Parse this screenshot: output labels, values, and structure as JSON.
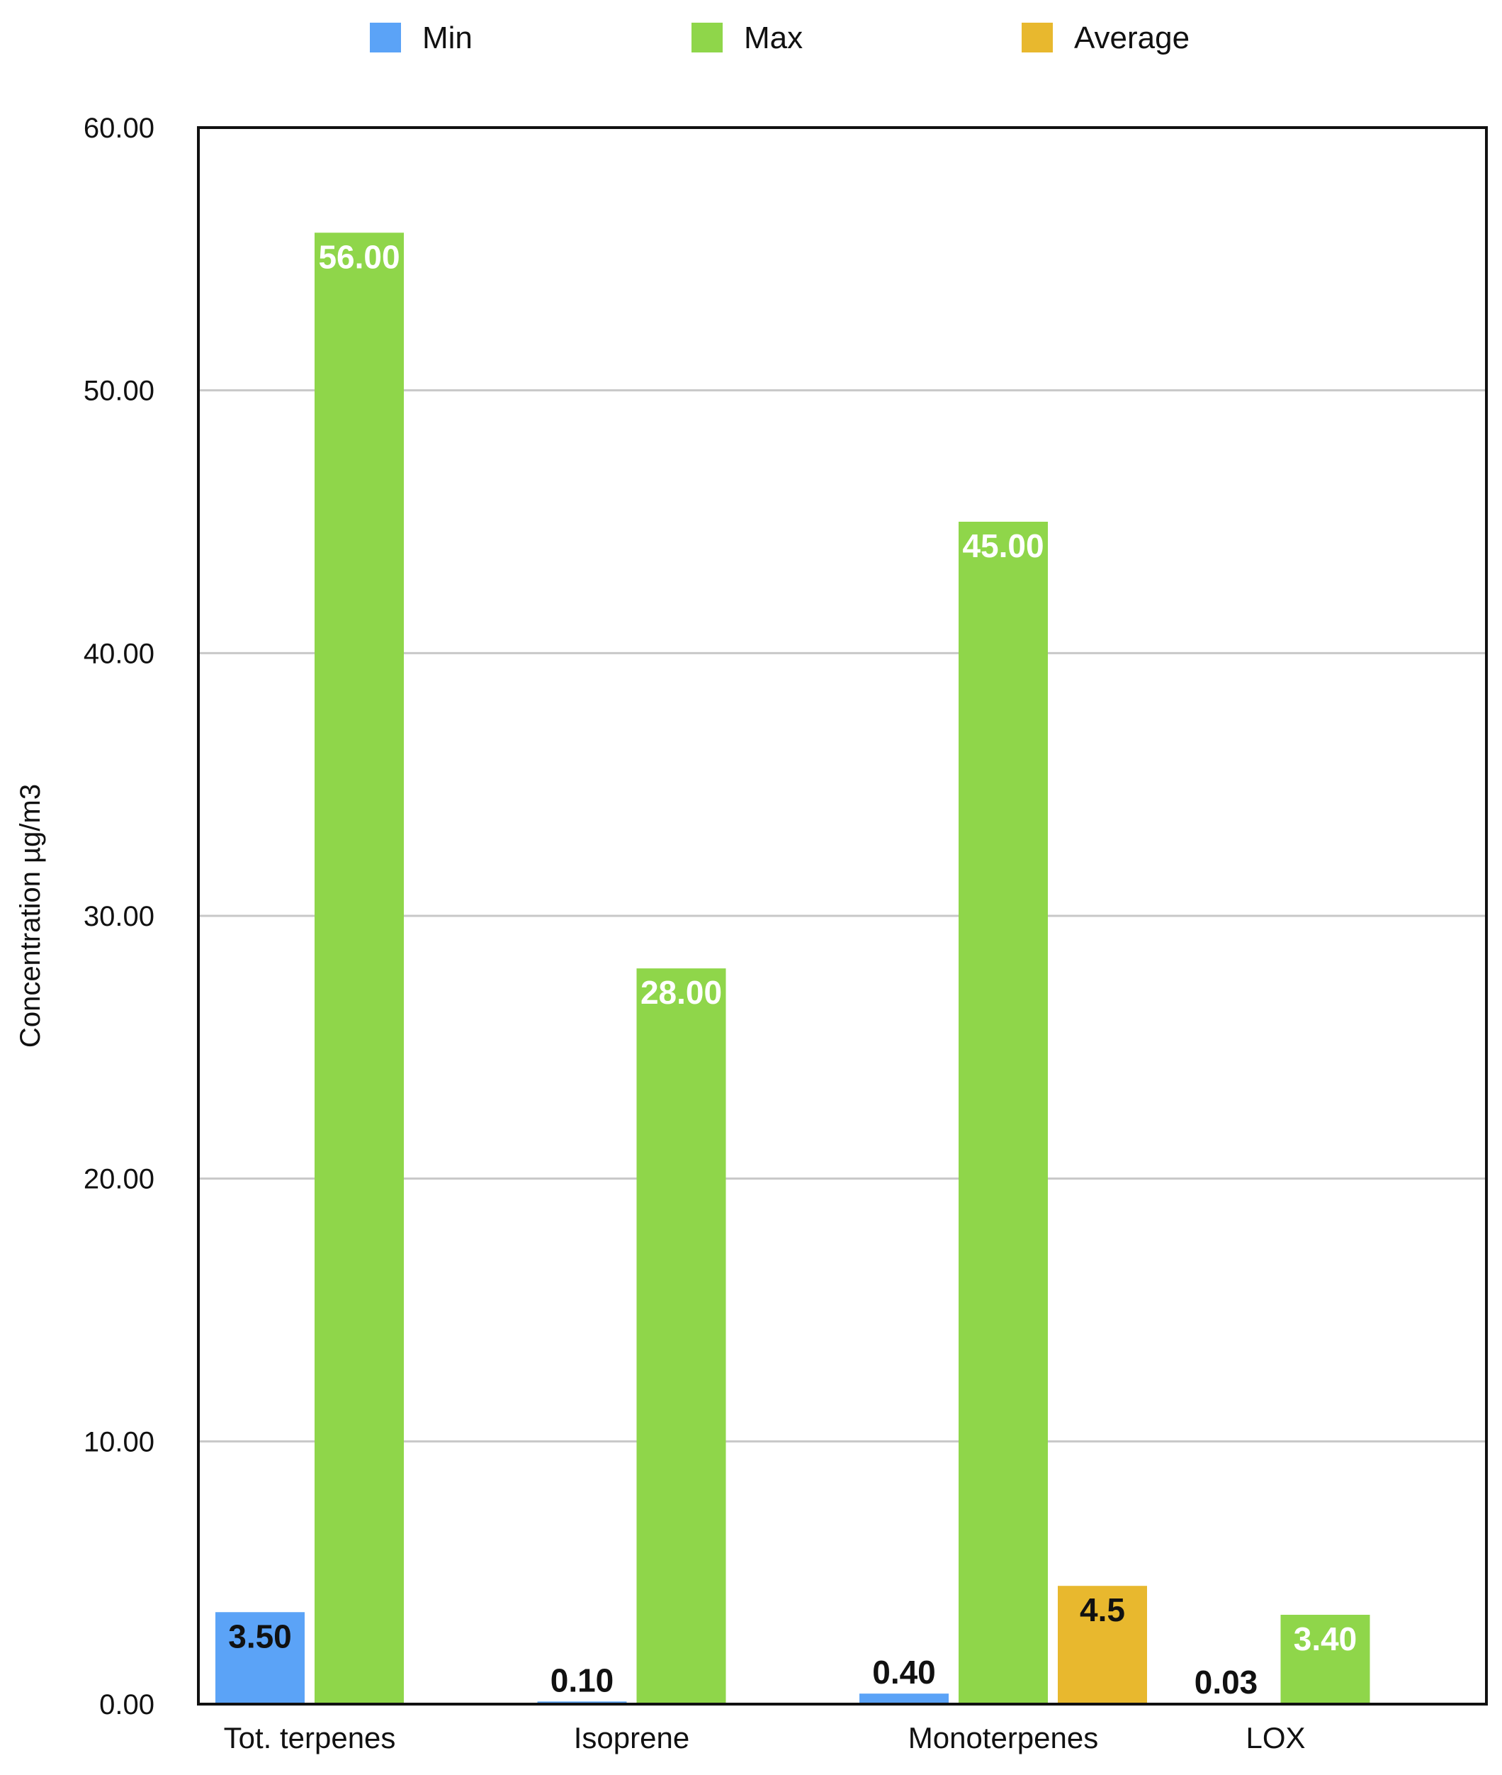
{
  "chart_data": {
    "type": "bar",
    "title": "",
    "xlabel": "",
    "ylabel": "Concentration µg/m3",
    "ylim": [
      0,
      60
    ],
    "yticks": [
      "0.00",
      "10.00",
      "20.00",
      "30.00",
      "40.00",
      "50.00",
      "60.00"
    ],
    "ytick_values": [
      0,
      10,
      20,
      30,
      40,
      50,
      60
    ],
    "grid": true,
    "legend_position": "top",
    "categories": [
      "Tot. terpenes",
      "Isoprene",
      "Monoterpenes",
      "LOX"
    ],
    "series": [
      {
        "name": "Min",
        "color": "#5BA3F7",
        "values": [
          3.5,
          0.1,
          0.4,
          0.03
        ],
        "labels": [
          "3.50",
          "0.10",
          "0.40",
          "0.03"
        ],
        "label_color": "#111111"
      },
      {
        "name": "Max",
        "color": "#8FD64A",
        "values": [
          56,
          28,
          45,
          3.4
        ],
        "labels": [
          "56.00",
          "28.00",
          "45.00",
          "3.40"
        ],
        "label_color": "#ffffff"
      },
      {
        "name": "Average",
        "color": "#E8B82E",
        "values": [
          null,
          null,
          4.5,
          null
        ],
        "labels": [
          null,
          null,
          "4.5",
          null
        ],
        "label_color": "#111111"
      }
    ]
  }
}
